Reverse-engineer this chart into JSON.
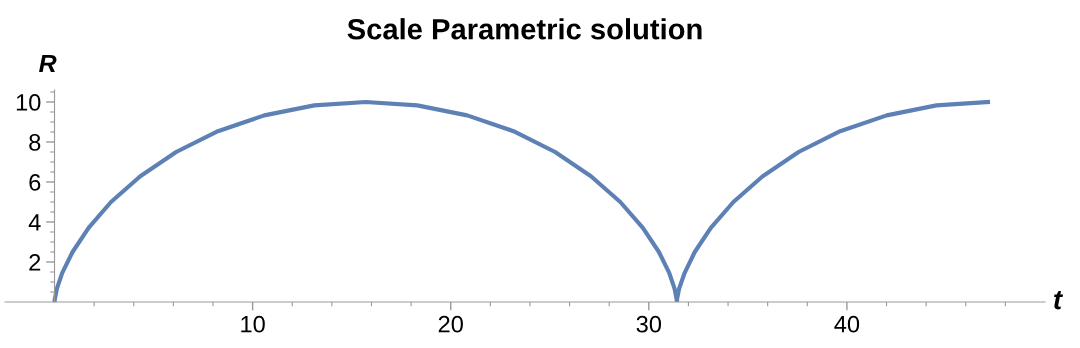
{
  "chart_data": {
    "type": "line",
    "title": "Scale Parametric solution",
    "xlabel": "t",
    "ylabel": "R",
    "x": [
      0,
      0.02,
      0.12,
      0.39,
      0.91,
      1.72,
      2.85,
      4.33,
      6.14,
      8.25,
      10.59,
      13.11,
      15.71,
      18.31,
      20.83,
      23.17,
      25.27,
      27.08,
      28.56,
      29.7,
      30.51,
      31.03,
      31.3,
      31.4,
      31.42,
      31.43,
      31.53,
      31.81,
      32.32,
      33.13,
      34.27,
      35.75,
      37.56,
      39.66,
      42.01,
      44.52,
      47.12
    ],
    "series": [
      {
        "color": "#5e81b5",
        "values": [
          0,
          0.17,
          0.67,
          1.46,
          2.5,
          3.71,
          5,
          6.29,
          7.5,
          8.54,
          9.33,
          9.83,
          10,
          9.83,
          9.33,
          8.54,
          7.5,
          6.29,
          5,
          3.71,
          2.5,
          1.46,
          0.67,
          0.17,
          0,
          0.17,
          0.67,
          1.46,
          2.5,
          3.71,
          5,
          6.29,
          7.5,
          8.54,
          9.33,
          9.83,
          10
        ]
      }
    ],
    "xlim": [
      -2.5,
      50
    ],
    "ylim": [
      0,
      10.6
    ],
    "xticks": [
      {
        "value": 2,
        "label": null
      },
      {
        "value": 4,
        "label": null
      },
      {
        "value": 6,
        "label": null
      },
      {
        "value": 8,
        "label": null
      },
      10,
      {
        "value": 12,
        "label": null
      },
      {
        "value": 14,
        "label": null
      },
      {
        "value": 16,
        "label": null
      },
      {
        "value": 18,
        "label": null
      },
      20,
      {
        "value": 22,
        "label": null
      },
      {
        "value": 24,
        "label": null
      },
      {
        "value": 26,
        "label": null
      },
      {
        "value": 28,
        "label": null
      },
      30,
      {
        "value": 32,
        "label": null
      },
      {
        "value": 34,
        "label": null
      },
      {
        "value": 36,
        "label": null
      },
      {
        "value": 38,
        "label": null
      },
      40,
      {
        "value": 42,
        "label": null
      },
      {
        "value": 44,
        "label": null
      },
      {
        "value": 46,
        "label": null
      },
      {
        "value": 48,
        "label": null
      }
    ],
    "yticks": [
      {
        "value": 0.5,
        "label": null
      },
      {
        "value": 1,
        "label": null
      },
      {
        "value": 1.5,
        "label": null
      },
      2,
      {
        "value": 2.5,
        "label": null
      },
      {
        "value": 3,
        "label": null
      },
      {
        "value": 3.5,
        "label": null
      },
      4,
      {
        "value": 4.5,
        "label": null
      },
      {
        "value": 5,
        "label": null
      },
      {
        "value": 5.5,
        "label": null
      },
      6,
      {
        "value": 6.5,
        "label": null
      },
      {
        "value": 7,
        "label": null
      },
      {
        "value": 7.5,
        "label": null
      },
      8,
      {
        "value": 8.5,
        "label": null
      },
      {
        "value": 9,
        "label": null
      },
      {
        "value": 9.5,
        "label": null
      },
      10,
      {
        "value": 10.5,
        "label": null
      }
    ],
    "grid": false,
    "marker": "none",
    "line_style": "solid"
  }
}
